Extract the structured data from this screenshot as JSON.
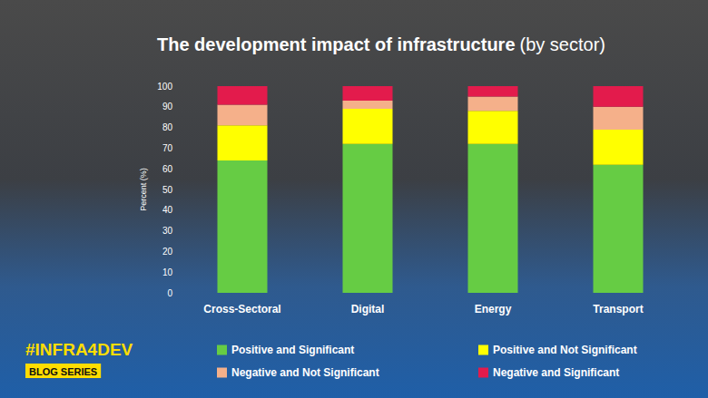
{
  "chart_data": {
    "type": "bar",
    "title": "The development impact of infrastructure",
    "subtitle": "(by sector)",
    "y_label": "Percent (%)",
    "categories": [
      "Cross-Sectoral",
      "Digital",
      "Energy",
      "Transport"
    ],
    "series": [
      {
        "name": "Positive and Significant",
        "color": "#66cc44",
        "values": [
          64,
          72,
          72,
          62
        ]
      },
      {
        "name": "Positive and Not Significant",
        "color": "#ffff00",
        "values": [
          17,
          17,
          16,
          17
        ]
      },
      {
        "name": "Negative and Not Significant",
        "color": "#f5b08a",
        "values": [
          10,
          4,
          7,
          11
        ]
      },
      {
        "name": "Negative and Significant",
        "color": "#e31b4c",
        "values": [
          9,
          7,
          5,
          10
        ]
      }
    ],
    "ylim": [
      0,
      100
    ],
    "yticks": [
      0,
      10,
      20,
      30,
      40,
      50,
      60,
      70,
      80,
      90,
      100
    ],
    "grid": false,
    "stacked": true,
    "legend": "bottom",
    "annotations": [
      "#INFRA4DEV",
      "BLOG SERIES"
    ]
  }
}
